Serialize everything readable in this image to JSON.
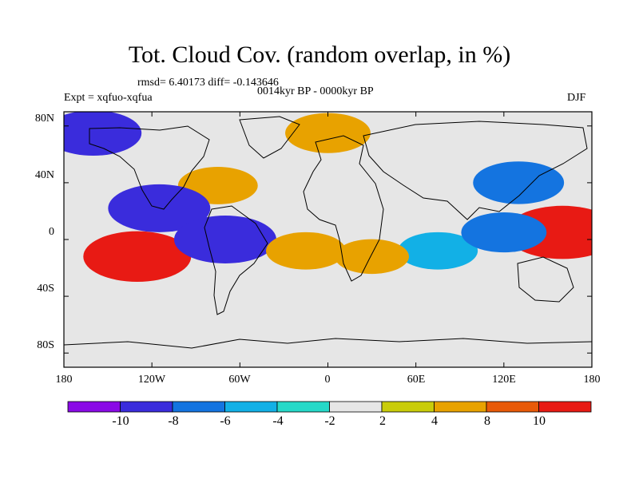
{
  "title": "Tot. Cloud Cov. (random overlap, in %)",
  "stats": "rmsd= 6.40173 diff= -0.143646",
  "period": "0014kyr BP - 0000kyr BP",
  "experiment": "Expt = xqfuo-xqfua",
  "season": "DJF",
  "lat_ticks": [
    "80N",
    "40N",
    "0",
    "40S",
    "80S"
  ],
  "lon_ticks": [
    "180",
    "120W",
    "60W",
    "0",
    "60E",
    "120E",
    "180"
  ],
  "colorbar": {
    "labels": [
      "-10",
      "-8",
      "-6",
      "-4",
      "-2",
      "2",
      "4",
      "8",
      "10"
    ],
    "colors": [
      "#8a0ae6",
      "#3a2cdc",
      "#1474e0",
      "#12b0e6",
      "#26d9c8",
      "#e6e6e6",
      "#c9cc0a",
      "#e8a200",
      "#e85a08",
      "#e81a14"
    ]
  },
  "chart_data": {
    "type": "heatmap",
    "title": "Tot. Cloud Cov. (random overlap, in %)",
    "variable": "Total cloud cover difference (%)",
    "x_range": [
      -180,
      180
    ],
    "y_range": [
      -90,
      90
    ],
    "levels": [
      -10,
      -8,
      -6,
      -4,
      -2,
      2,
      4,
      8,
      10
    ],
    "anomalies": [
      {
        "lon": 160,
        "lat": 5,
        "value": 12
      },
      {
        "lon": -130,
        "lat": -12,
        "value": 11
      },
      {
        "lon": -75,
        "lat": 38,
        "value": 6
      },
      {
        "lon": -115,
        "lat": 22,
        "value": -10
      },
      {
        "lon": -70,
        "lat": 0,
        "value": -10
      },
      {
        "lon": 75,
        "lat": -8,
        "value": -6
      },
      {
        "lon": 30,
        "lat": -12,
        "value": 5
      },
      {
        "lon": -15,
        "lat": -8,
        "value": 6
      },
      {
        "lon": 0,
        "lat": 75,
        "value": 7
      },
      {
        "lon": -160,
        "lat": 75,
        "value": -9
      },
      {
        "lon": 130,
        "lat": 40,
        "value": -8
      },
      {
        "lon": 120,
        "lat": 5,
        "value": -7
      }
    ]
  }
}
